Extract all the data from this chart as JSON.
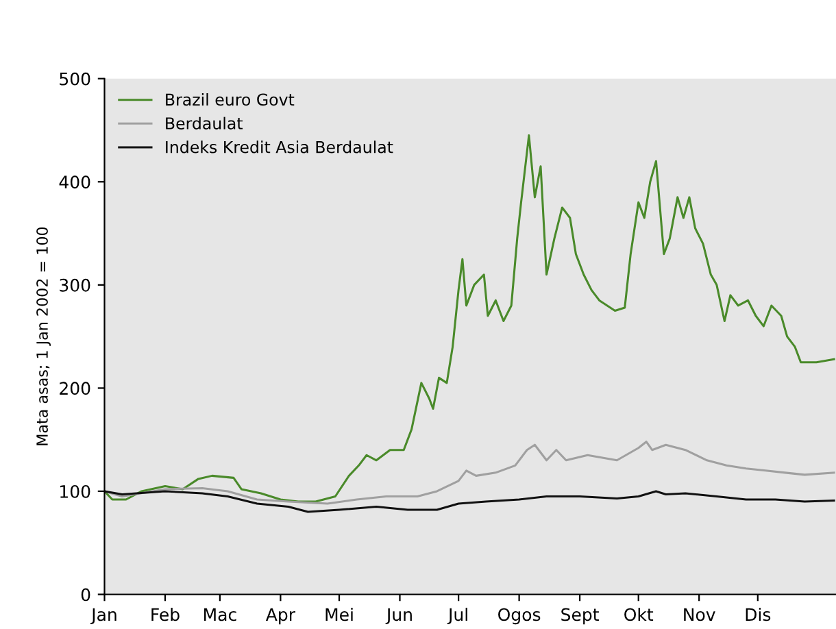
{
  "chart_data": {
    "type": "line",
    "ylabel": "Mata asas; 1 Jan 2002 = 100",
    "legend": "top left",
    "grid": false,
    "marker": "none",
    "line_style": "solid",
    "xlim": [
      "2002-01-01",
      "2003-01-10"
    ],
    "ylim": [
      0,
      500
    ],
    "yticks": [
      0,
      100,
      200,
      300,
      400,
      500
    ],
    "xticks": [
      {
        "value": "2002-01-01",
        "label": "Jan"
      },
      {
        "value": "2002-02-01",
        "label": "Feb"
      },
      {
        "value": "2002-03-01",
        "label": "Mac"
      },
      {
        "value": "2002-04-01",
        "label": "Apr"
      },
      {
        "value": "2002-05-01",
        "label": "Mei"
      },
      {
        "value": "2002-06-01",
        "label": "Jun"
      },
      {
        "value": "2002-07-01",
        "label": "Jul"
      },
      {
        "value": "2002-08-01",
        "label": "Ogos"
      },
      {
        "value": "2002-09-01",
        "label": "Sept"
      },
      {
        "value": "2002-10-01",
        "label": "Okt"
      },
      {
        "value": "2002-11-01",
        "label": "Nov"
      },
      {
        "value": "2002-12-01",
        "label": "Dis"
      }
    ],
    "series": [
      {
        "name": "Brazil euro Govt",
        "color": "#4a8a2a",
        "x": [
          "2002-01-01",
          "2002-01-05",
          "2002-01-12",
          "2002-01-20",
          "2002-02-01",
          "2002-02-10",
          "2002-02-18",
          "2002-02-25",
          "2002-03-08",
          "2002-03-12",
          "2002-03-22",
          "2002-04-01",
          "2002-04-10",
          "2002-04-19",
          "2002-04-29",
          "2002-05-06",
          "2002-05-11",
          "2002-05-15",
          "2002-05-20",
          "2002-05-27",
          "2002-06-03",
          "2002-06-07",
          "2002-06-12",
          "2002-06-16",
          "2002-06-18",
          "2002-06-21",
          "2002-06-25",
          "2002-06-28",
          "2002-07-01",
          "2002-07-03",
          "2002-07-05",
          "2002-07-09",
          "2002-07-14",
          "2002-07-16",
          "2002-07-20",
          "2002-07-24",
          "2002-07-28",
          "2002-07-31",
          "2002-08-02",
          "2002-08-06",
          "2002-08-09",
          "2002-08-12",
          "2002-08-15",
          "2002-08-19",
          "2002-08-23",
          "2002-08-27",
          "2002-08-30",
          "2002-09-03",
          "2002-09-07",
          "2002-09-11",
          "2002-09-15",
          "2002-09-19",
          "2002-09-24",
          "2002-09-27",
          "2002-10-01",
          "2002-10-04",
          "2002-10-07",
          "2002-10-10",
          "2002-10-14",
          "2002-10-17",
          "2002-10-21",
          "2002-10-24",
          "2002-10-27",
          "2002-10-30",
          "2002-11-03",
          "2002-11-07",
          "2002-11-10",
          "2002-11-14",
          "2002-11-17",
          "2002-11-21",
          "2002-11-26",
          "2002-11-30",
          "2002-12-04",
          "2002-12-08",
          "2002-12-13",
          "2002-12-16",
          "2002-12-20",
          "2002-12-23",
          "2002-12-31",
          "2003-01-09"
        ],
        "values": [
          100,
          92,
          92,
          100,
          105,
          102,
          112,
          115,
          113,
          102,
          98,
          92,
          90,
          90,
          95,
          115,
          125,
          135,
          130,
          140,
          140,
          160,
          205,
          190,
          180,
          210,
          205,
          240,
          295,
          325,
          280,
          300,
          310,
          270,
          285,
          265,
          280,
          345,
          380,
          445,
          385,
          415,
          310,
          345,
          375,
          365,
          330,
          310,
          295,
          285,
          280,
          275,
          278,
          330,
          380,
          365,
          400,
          420,
          330,
          345,
          385,
          365,
          385,
          355,
          340,
          310,
          300,
          265,
          290,
          280,
          285,
          270,
          260,
          280,
          270,
          250,
          240,
          225,
          225,
          228
        ]
      },
      {
        "name": "Berdaulat",
        "color": "#a0a0a0",
        "x": [
          "2002-01-01",
          "2002-01-10",
          "2002-02-01",
          "2002-02-20",
          "2002-03-05",
          "2002-03-20",
          "2002-04-05",
          "2002-04-25",
          "2002-05-10",
          "2002-05-25",
          "2002-06-10",
          "2002-06-20",
          "2002-07-01",
          "2002-07-05",
          "2002-07-10",
          "2002-07-20",
          "2002-07-30",
          "2002-08-05",
          "2002-08-09",
          "2002-08-15",
          "2002-08-20",
          "2002-08-25",
          "2002-09-05",
          "2002-09-20",
          "2002-10-01",
          "2002-10-05",
          "2002-10-08",
          "2002-10-15",
          "2002-10-25",
          "2002-11-05",
          "2002-11-15",
          "2002-11-25",
          "2002-12-05",
          "2002-12-15",
          "2002-12-25",
          "2003-01-09"
        ],
        "values": [
          100,
          95,
          102,
          103,
          100,
          92,
          90,
          88,
          92,
          95,
          95,
          100,
          110,
          120,
          115,
          118,
          125,
          140,
          145,
          130,
          140,
          130,
          135,
          130,
          142,
          148,
          140,
          145,
          140,
          130,
          125,
          122,
          120,
          118,
          116,
          118
        ]
      },
      {
        "name": "Indeks Kredit Asia Berdaulat",
        "color": "#111111",
        "x": [
          "2002-01-01",
          "2002-01-10",
          "2002-02-01",
          "2002-02-20",
          "2002-03-05",
          "2002-03-20",
          "2002-04-05",
          "2002-04-15",
          "2002-05-01",
          "2002-05-20",
          "2002-06-05",
          "2002-06-20",
          "2002-07-01",
          "2002-07-15",
          "2002-08-01",
          "2002-08-15",
          "2002-09-01",
          "2002-09-20",
          "2002-10-01",
          "2002-10-10",
          "2002-10-15",
          "2002-10-25",
          "2002-11-10",
          "2002-11-25",
          "2002-12-10",
          "2002-12-25",
          "2003-01-09"
        ],
        "values": [
          100,
          97,
          100,
          98,
          95,
          88,
          85,
          80,
          82,
          85,
          82,
          82,
          88,
          90,
          92,
          95,
          95,
          93,
          95,
          100,
          97,
          98,
          95,
          92,
          92,
          90,
          91
        ]
      }
    ]
  }
}
